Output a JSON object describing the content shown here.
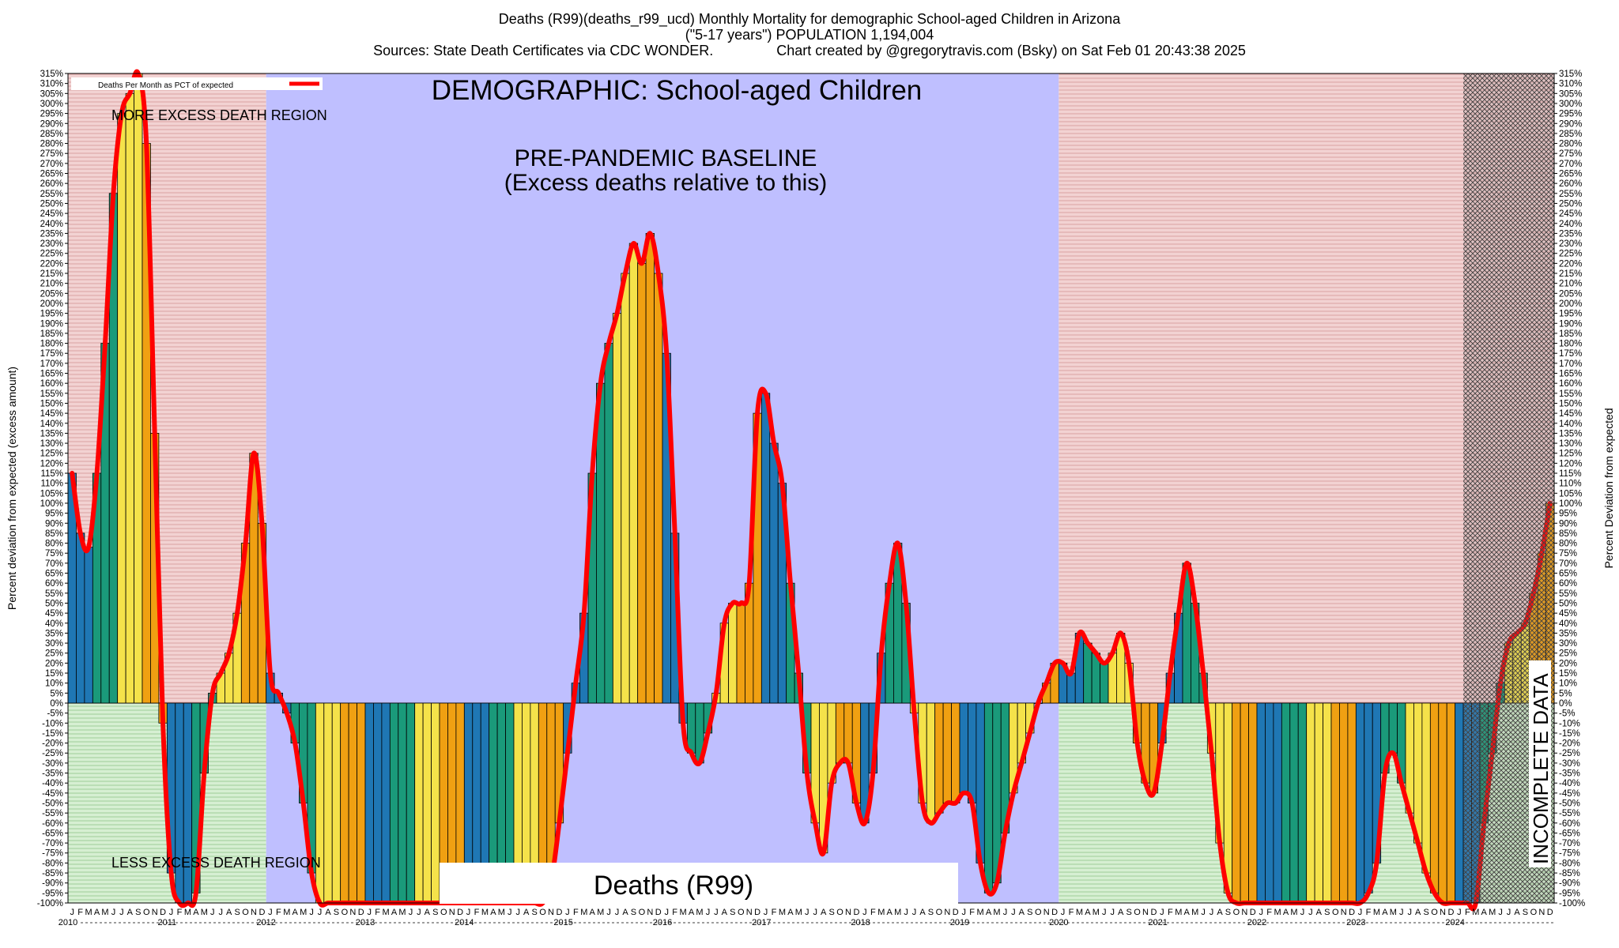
{
  "header": {
    "title": "Deaths (R99)(deaths_r99_ucd) Monthly Mortality for demographic School-aged Children in Arizona",
    "subtitle": "(\"5-17 years\") POPULATION 1,194,004",
    "sources": "Sources: State Death Certificates via CDC WONDER.                Chart created by @gregorytravis.com (Bsky) on Sat Feb 01 20:43:38 2025"
  },
  "annotations": {
    "demographic": "DEMOGRAPHIC: School-aged Children",
    "baseline_line1": "PRE-PANDEMIC BASELINE",
    "baseline_line2": "(Excess deaths relative to this)",
    "more_region": "MORE EXCESS DEATH REGION",
    "less_region": "LESS EXCESS DEATH REGION",
    "incomplete": "INCOMPLETE DATA",
    "cause_box": "Deaths (R99)"
  },
  "colors": {
    "baseline_region": "#bfbfff",
    "more_region": "#f0c9c9",
    "less_region": "#cde8c9",
    "incomplete_region": "#b0a8a8",
    "line": "#ff0000",
    "bar_palette": [
      "#1f77b4",
      "#1a9a7a",
      "#f5e24a",
      "#f0a012"
    ]
  },
  "chart_data": {
    "type": "bar",
    "title": "Deaths (R99)(deaths_r99_ucd) Monthly Mortality for demographic School-aged Children in Arizona",
    "ylabel": "Percent deviation from expected (excess amount)",
    "ylabel_right": "Percent Deviation from expected",
    "ylim": [
      -100,
      315
    ],
    "ytick_step": 5,
    "legend": "Deaths Per Month as PCT of expected",
    "legend_position": "top-left",
    "x_month_letters": [
      "J",
      "F",
      "M",
      "A",
      "M",
      "J",
      "J",
      "A",
      "S",
      "O",
      "N",
      "D"
    ],
    "years": [
      "2010",
      "2011",
      "2012",
      "2013",
      "2014",
      "2015",
      "2016",
      "2017",
      "2018",
      "2019",
      "2020",
      "2021",
      "2022",
      "2023",
      "2024"
    ],
    "regions": {
      "pre_pandemic_baseline": [
        "2012-01",
        "2019-12"
      ],
      "incomplete_data_from": "2024-02"
    },
    "series": [
      {
        "name": "Deaths Per Month as PCT of expected",
        "values": [
          115,
          85,
          78,
          115,
          180,
          255,
          295,
          305,
          315,
          280,
          135,
          -10,
          -85,
          -100,
          -100,
          -95,
          -35,
          5,
          15,
          25,
          45,
          80,
          125,
          90,
          15,
          5,
          -5,
          -20,
          -50,
          -85,
          -100,
          -100,
          -100,
          -100,
          -100,
          -100,
          -100,
          -100,
          -100,
          -100,
          -100,
          -100,
          -100,
          -100,
          -100,
          -100,
          -100,
          -100,
          -100,
          -100,
          -100,
          -100,
          -100,
          -100,
          -100,
          -100,
          -100,
          -100,
          -90,
          -60,
          -25,
          10,
          45,
          115,
          160,
          180,
          195,
          215,
          230,
          220,
          235,
          215,
          175,
          85,
          -10,
          -25,
          -30,
          -15,
          5,
          40,
          50,
          50,
          60,
          145,
          155,
          130,
          110,
          60,
          15,
          -35,
          -60,
          -75,
          -40,
          -30,
          -30,
          -50,
          -60,
          -35,
          25,
          60,
          80,
          50,
          -5,
          -50,
          -60,
          -55,
          -50,
          -50,
          -45,
          -50,
          -80,
          -95,
          -90,
          -65,
          -45,
          -30,
          -15,
          0,
          10,
          20,
          20,
          15,
          35,
          30,
          25,
          20,
          25,
          35,
          20,
          -20,
          -40,
          -45,
          -20,
          15,
          45,
          70,
          50,
          15,
          -25,
          -70,
          -95,
          -100,
          -100,
          -100,
          -100,
          -100,
          -100,
          -100,
          -100,
          -100,
          -100,
          -100,
          -100,
          -100,
          -100,
          -100,
          -100,
          -95,
          -80,
          -35,
          -25,
          -40,
          -55,
          -70,
          -85,
          -95,
          -100,
          -100,
          -100,
          -100,
          -100,
          -60,
          -25,
          10,
          30,
          35,
          40,
          55,
          75,
          100
        ]
      }
    ]
  }
}
